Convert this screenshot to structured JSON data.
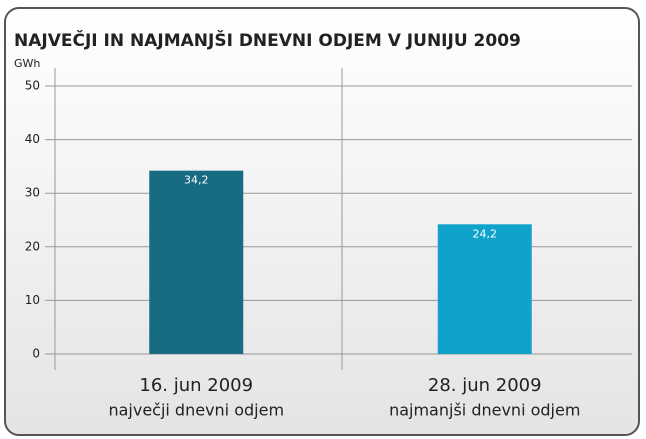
{
  "chart_data": {
    "type": "bar",
    "title": "NAJVEČJI IN NAJMANJŠI DNEVNI ODJEM V JUNIJU 2009",
    "y_label": "GWh",
    "categories": [
      "16. jun 2009",
      "28. jun 2009"
    ],
    "category_sublabels": [
      "največji dnevni odjem",
      "najmanjši dnevni odjem"
    ],
    "values": [
      34.2,
      24.2
    ],
    "value_labels": [
      "34,2",
      "24,2"
    ],
    "colors": [
      "#176b82",
      "#0fa3cc"
    ],
    "ylim": [
      0,
      50
    ],
    "yticks": [
      0,
      10,
      20,
      30,
      40,
      50
    ],
    "grid": true
  }
}
